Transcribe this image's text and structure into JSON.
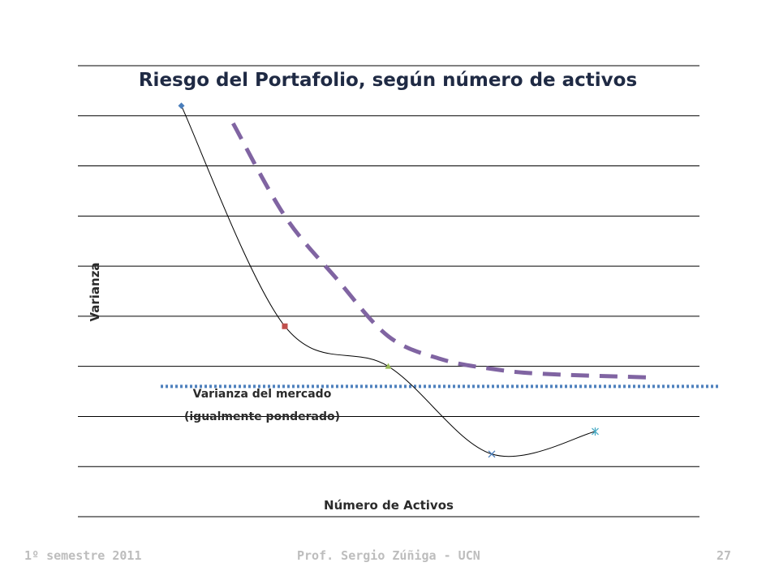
{
  "slide": {
    "footer_left": "1º semestre 2011",
    "footer_center": "Prof. Sergio Zúñiga - UCN",
    "page_number": "27"
  },
  "chart_data": {
    "type": "line",
    "title": "Riesgo del Portafolio, según número de activos",
    "xlabel": "Número de Activos",
    "ylabel": "Varianza",
    "xlim": [
      0,
      6
    ],
    "ylim": [
      0,
      9
    ],
    "grid": true,
    "series": [
      {
        "points": [
          {
            "x": 1,
            "y": 8.2,
            "marker": "diamond",
            "color": "#4a7ebb"
          },
          {
            "x": 2,
            "y": 3.8,
            "marker": "square",
            "color": "#c0504d"
          },
          {
            "x": 3,
            "y": 3.0,
            "marker": "triangle",
            "color": "#9bbb59"
          },
          {
            "x": 4,
            "y": 1.25,
            "marker": "x",
            "color": "#4a7ebb"
          },
          {
            "x": 5,
            "y": 1.7,
            "marker": "star",
            "color": "#4aacc6"
          }
        ],
        "line_color": "#000000",
        "smooth": true
      }
    ],
    "overlays": [
      {
        "style": "dashed",
        "color": "#8064a2",
        "points": [
          [
            1.5,
            7.85
          ],
          [
            2.0,
            6.0
          ],
          [
            2.5,
            4.75
          ],
          [
            3.0,
            3.6
          ],
          [
            3.5,
            3.15
          ],
          [
            4.0,
            2.95
          ],
          [
            4.5,
            2.85
          ],
          [
            5.5,
            2.78
          ]
        ]
      },
      {
        "style": "dotted",
        "color": "#4f81bd",
        "y": 2.6,
        "x_range": [
          0.8,
          6.2
        ]
      }
    ],
    "annotations": [
      {
        "line1": "Varianza del mercado",
        "line2": "(igualmente ponderado)"
      }
    ]
  }
}
